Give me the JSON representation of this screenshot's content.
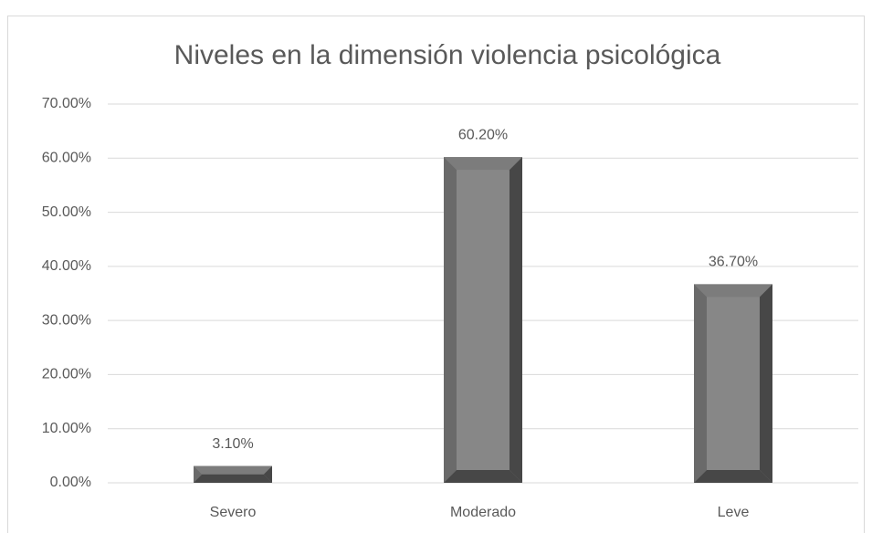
{
  "chart_data": {
    "type": "bar",
    "title": "Niveles en la dimensión violencia psicológica",
    "categories": [
      "Severo",
      "Moderado",
      "Leve"
    ],
    "values": [
      3.1,
      60.2,
      36.7
    ],
    "value_labels": [
      "3.10%",
      "60.20%",
      "36.70%"
    ],
    "color": "#878787",
    "ylim": [
      0,
      70
    ],
    "yticks": [
      {
        "value": 0,
        "label": "0.00%"
      },
      {
        "value": 10,
        "label": "10.00%"
      },
      {
        "value": 20,
        "label": "20.00%"
      },
      {
        "value": 30,
        "label": "30.00%"
      },
      {
        "value": 40,
        "label": "40.00%"
      },
      {
        "value": 50,
        "label": "50.00%"
      },
      {
        "value": 60,
        "label": "60.00%"
      },
      {
        "value": 70,
        "label": "70.00%"
      }
    ],
    "grid": true
  }
}
